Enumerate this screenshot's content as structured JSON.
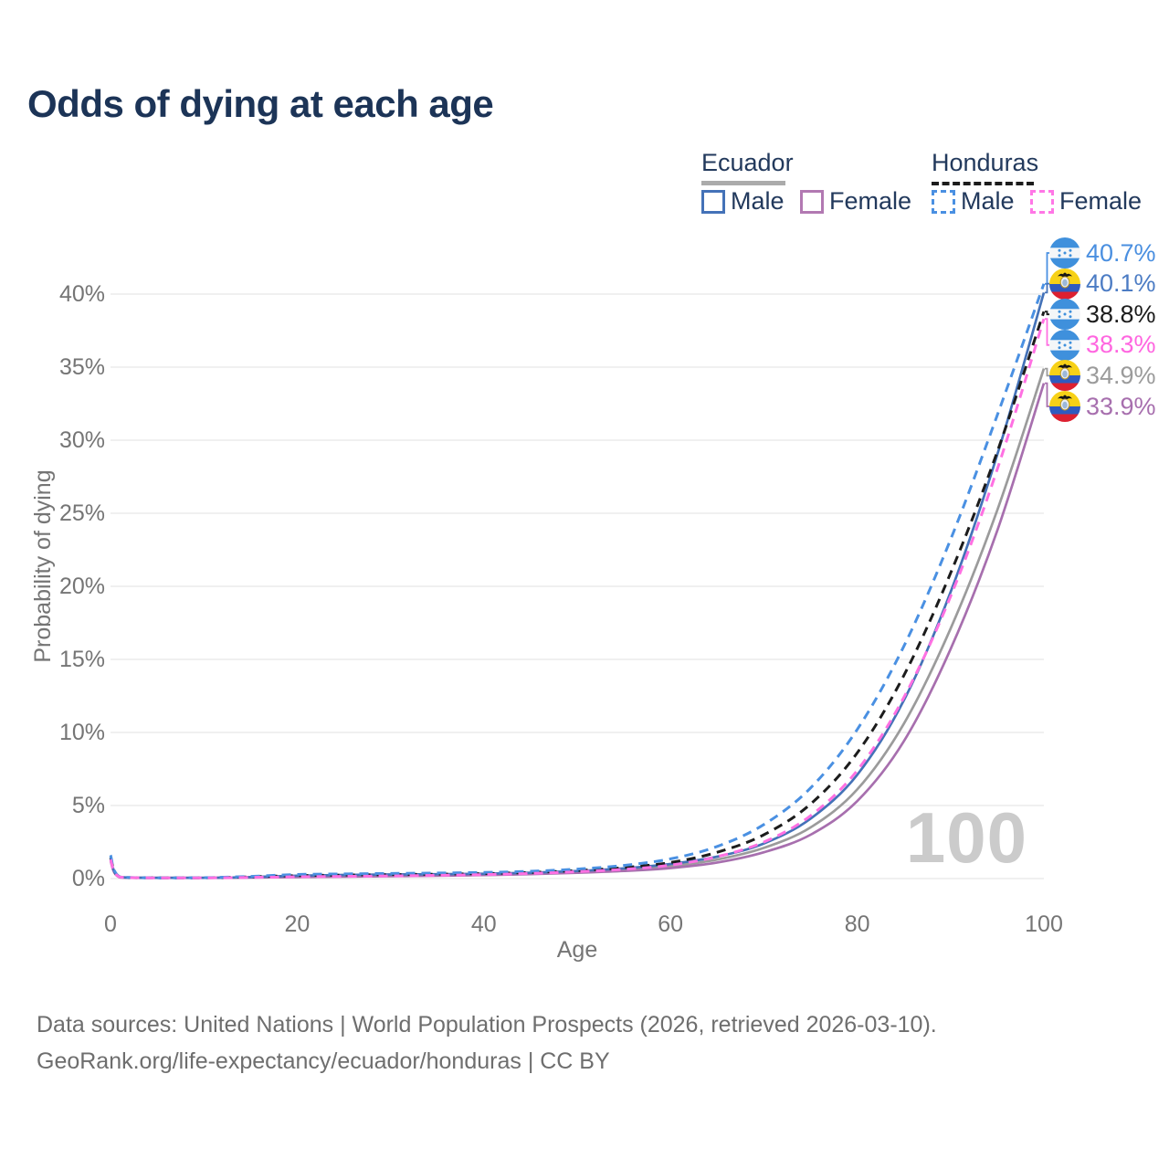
{
  "title": "Odds of dying at each age",
  "legend": {
    "ecuador": {
      "title": "Ecuador",
      "underline_color": "#ababab",
      "line_style": "solid",
      "male_label": "Male",
      "male_color": "#4472b8",
      "female_label": "Female",
      "female_color": "#b279b2"
    },
    "honduras": {
      "title": "Honduras",
      "underline_color": "#1c1c1c",
      "line_style": "dashed",
      "male_label": "Male",
      "male_color": "#4a90e2",
      "female_label": "Female",
      "female_color": "#ff77e6"
    }
  },
  "watermark": "100",
  "footer": {
    "line1": "Data sources: United Nations | World Population Prospects (2026, retrieved 2026-03-10).",
    "line2": "GeoRank.org/life-expectancy/ecuador/honduras | CC BY"
  },
  "chart_data": {
    "type": "line",
    "title": "Odds of dying at each age",
    "xlabel": "Age",
    "ylabel": "Probability of dying",
    "x_ticks": [
      0,
      20,
      40,
      60,
      80,
      100
    ],
    "y_ticks": [
      0,
      5,
      10,
      15,
      20,
      25,
      30,
      35,
      40
    ],
    "y_tick_labels": [
      "0%",
      "5%",
      "10%",
      "15%",
      "20%",
      "25%",
      "30%",
      "35%",
      "40%"
    ],
    "xlim": [
      0,
      100
    ],
    "ylim_pct": [
      0,
      43
    ],
    "grid": "horizontal",
    "legend_position": "top-right",
    "colors": {
      "gridline": "#ececec",
      "axis_text": "#757575",
      "title_text": "#1c3457",
      "watermark": "#cbcbcb"
    },
    "ages": [
      0,
      1,
      5,
      10,
      15,
      20,
      25,
      30,
      35,
      40,
      45,
      50,
      55,
      60,
      65,
      70,
      75,
      80,
      85,
      90,
      95,
      100
    ],
    "draw_order": [
      "ecuador-both",
      "ecuador-female",
      "ecuador-male",
      "honduras-both",
      "honduras-male",
      "honduras-female"
    ],
    "series": [
      {
        "id": "honduras-male",
        "country": "Honduras",
        "sex": "Male",
        "line_style": "dashed",
        "color": "#4a90e2",
        "label_color": "#4a8fe0",
        "flag": "honduras",
        "end_label": "40.7%",
        "end_value_pct": 40.7,
        "values_pct": [
          1.6,
          0.12,
          0.05,
          0.06,
          0.15,
          0.28,
          0.32,
          0.35,
          0.38,
          0.42,
          0.5,
          0.65,
          0.9,
          1.35,
          2.2,
          3.7,
          6.2,
          10.2,
          15.9,
          23.2,
          31.7,
          40.7
        ]
      },
      {
        "id": "ecuador-male",
        "country": "Ecuador",
        "sex": "Male",
        "line_style": "solid",
        "color": "#4472b8",
        "label_color": "#4c7cc4",
        "flag": "ecuador",
        "end_label": "40.1%",
        "end_value_pct": 40.1,
        "values_pct": [
          1.4,
          0.1,
          0.04,
          0.045,
          0.1,
          0.2,
          0.25,
          0.28,
          0.3,
          0.33,
          0.4,
          0.52,
          0.7,
          1.0,
          1.5,
          2.4,
          4.1,
          7.1,
          12.2,
          19.6,
          29.0,
          40.1
        ]
      },
      {
        "id": "honduras-both",
        "country": "Honduras",
        "sex": "Both sexes",
        "line_style": "dashed",
        "color": "#1c1c1c",
        "label_color": "#1c1c1c",
        "flag": "honduras",
        "end_label": "38.8%",
        "end_value_pct": 38.8,
        "values_pct": [
          1.45,
          0.11,
          0.045,
          0.05,
          0.12,
          0.2,
          0.24,
          0.27,
          0.3,
          0.34,
          0.42,
          0.55,
          0.75,
          1.1,
          1.8,
          3.0,
          5.1,
          8.6,
          13.9,
          20.9,
          29.2,
          38.8
        ]
      },
      {
        "id": "honduras-female",
        "country": "Honduras",
        "sex": "Female",
        "line_style": "dashed",
        "color": "#ff70e2",
        "label_color": "#ff66e0",
        "flag": "honduras",
        "end_label": "38.3%",
        "end_value_pct": 38.3,
        "values_pct": [
          1.3,
          0.1,
          0.04,
          0.04,
          0.08,
          0.12,
          0.15,
          0.18,
          0.22,
          0.27,
          0.35,
          0.47,
          0.63,
          0.92,
          1.5,
          2.5,
          4.3,
          7.4,
          12.4,
          19.3,
          28.0,
          38.3
        ]
      },
      {
        "id": "ecuador-both",
        "country": "Ecuador",
        "sex": "Both sexes",
        "line_style": "solid",
        "color": "#9b9b9b",
        "label_color": "#9b9b9b",
        "flag": "ecuador",
        "end_label": "34.9%",
        "end_value_pct": 34.9,
        "values_pct": [
          1.3,
          0.09,
          0.04,
          0.04,
          0.09,
          0.16,
          0.2,
          0.23,
          0.26,
          0.29,
          0.35,
          0.45,
          0.6,
          0.85,
          1.3,
          2.1,
          3.5,
          6.1,
          10.6,
          17.1,
          25.2,
          34.9
        ]
      },
      {
        "id": "ecuador-female",
        "country": "Ecuador",
        "sex": "Female",
        "line_style": "solid",
        "color": "#a76fae",
        "label_color": "#a76fae",
        "flag": "ecuador",
        "end_label": "33.9%",
        "end_value_pct": 33.9,
        "values_pct": [
          1.2,
          0.08,
          0.035,
          0.035,
          0.07,
          0.1,
          0.13,
          0.16,
          0.19,
          0.24,
          0.3,
          0.4,
          0.52,
          0.72,
          1.1,
          1.8,
          3.0,
          5.3,
          9.4,
          15.7,
          23.8,
          33.9
        ]
      }
    ]
  }
}
